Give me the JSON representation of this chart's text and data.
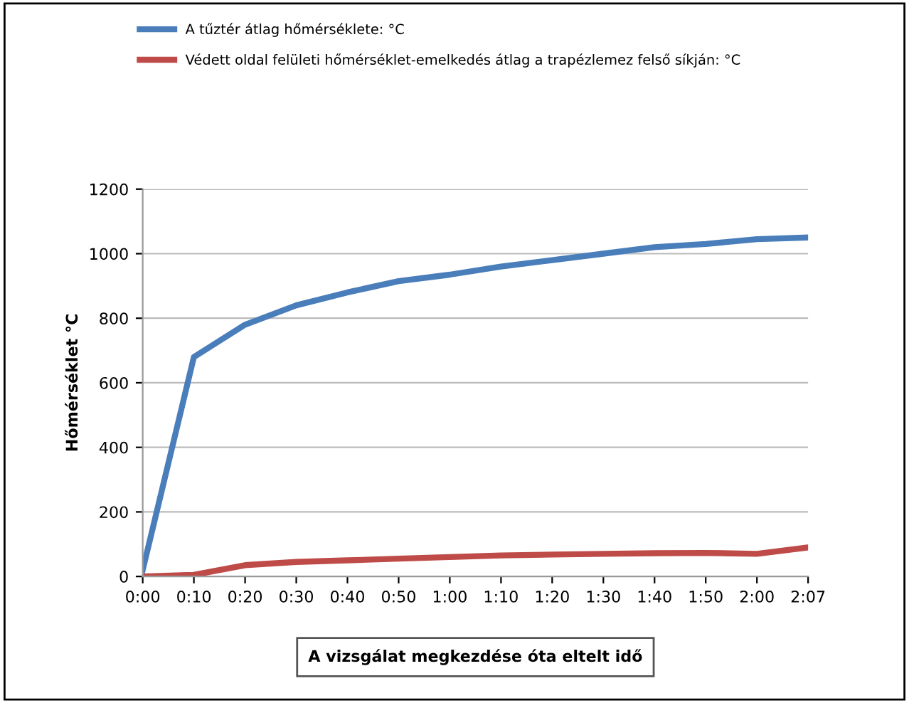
{
  "chart_data": {
    "type": "line",
    "xlabel": "A vizsgálat megkezdése óta eltelt idő",
    "ylabel": "Hőmérséklet °C",
    "categories": [
      "0:00",
      "0:10",
      "0:20",
      "0:30",
      "0:40",
      "0:50",
      "1:00",
      "1:10",
      "1:20",
      "1:30",
      "1:40",
      "1:50",
      "2:00",
      "2:07"
    ],
    "series": [
      {
        "name": "A tűztér átlag hőmérséklete: °C",
        "color": "#4a7ebb",
        "values": [
          20,
          680,
          780,
          840,
          880,
          915,
          935,
          960,
          980,
          1000,
          1020,
          1030,
          1045,
          1050
        ]
      },
      {
        "name": "Védett oldal felületi hőmérséklet-emelkedés átlag a trapézlemez felső síkján: °C",
        "color": "#be4b48",
        "values": [
          0,
          5,
          35,
          45,
          50,
          55,
          60,
          65,
          68,
          70,
          72,
          73,
          70,
          90
        ]
      }
    ],
    "ylim": [
      0,
      1200
    ],
    "yticks": [
      0,
      200,
      400,
      600,
      800,
      1000,
      1200
    ],
    "grid": "y",
    "legend": "top left",
    "marker": "none",
    "line_style": "solid"
  }
}
